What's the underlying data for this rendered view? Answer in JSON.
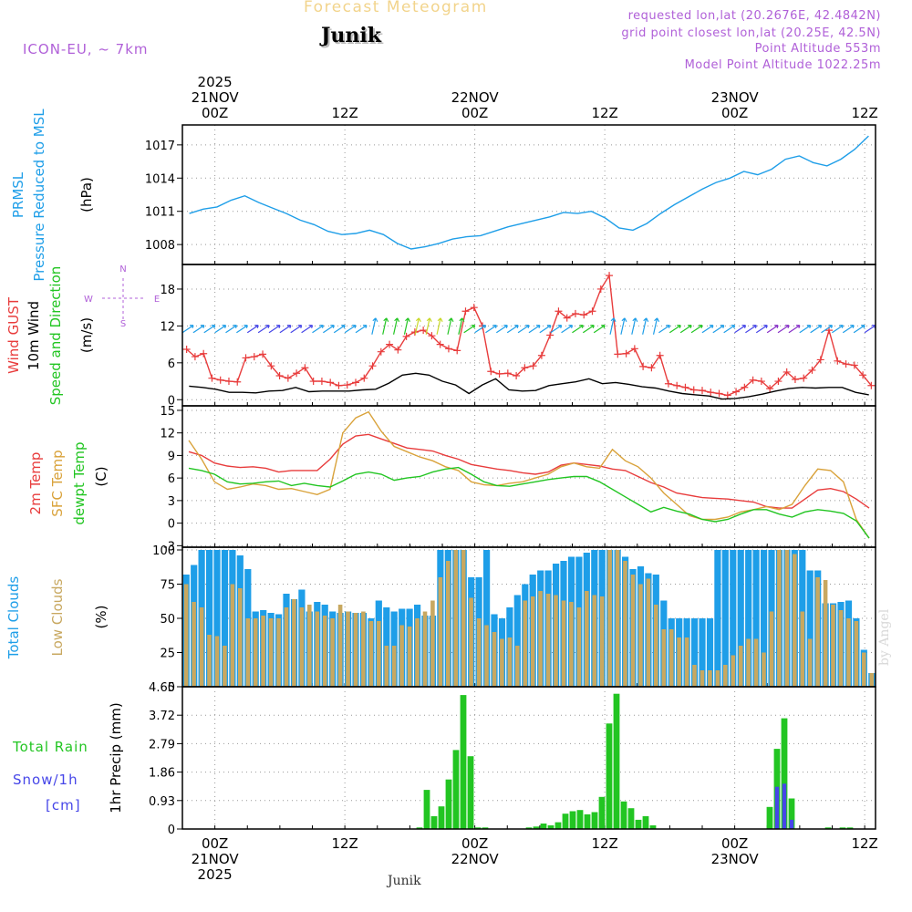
{
  "header": {
    "title": "Forecast Meteogram",
    "location": "Junik",
    "model": "ICON-EU, ~ 7km",
    "requested": "requested lon,lat (20.2676E, 42.4842N)",
    "gridpoint": "grid point closest lon,lat (20.25E, 42.5N)",
    "point_alt": "Point Altitude 553m",
    "model_alt": "Model Point Altitude 1022.25m",
    "footer_location": "Junik",
    "credit": "by Angel"
  },
  "colors": {
    "pressure": "#1e9ee8",
    "gust": "#e83c3c",
    "wind": "#000000",
    "temp2m": "#e83c3c",
    "sfc": "#d9a23a",
    "dewpt": "#22c522",
    "total_clouds": "#1e9ee8",
    "low_clouds": "#c8a860",
    "rain": "#22c522",
    "snow": "#4646e8",
    "magenta": "#b060d8"
  },
  "time_axis": {
    "start": "2025-11-20T21Z",
    "hours": 64,
    "top_labels": [
      {
        "h": 3,
        "lines": [
          "2025",
          "21NOV",
          "00Z"
        ]
      },
      {
        "h": 15,
        "lines": [
          "12Z"
        ]
      },
      {
        "h": 27,
        "lines": [
          "22NOV",
          "00Z"
        ]
      },
      {
        "h": 39,
        "lines": [
          "12Z"
        ]
      },
      {
        "h": 51,
        "lines": [
          "23NOV",
          "00Z"
        ]
      },
      {
        "h": 63,
        "lines": [
          "12Z"
        ]
      }
    ],
    "bottom_labels": [
      {
        "h": 3,
        "lines": [
          "00Z",
          "21NOV",
          "2025"
        ]
      },
      {
        "h": 15,
        "lines": [
          "12Z"
        ]
      },
      {
        "h": 27,
        "lines": [
          "00Z",
          "22NOV"
        ]
      },
      {
        "h": 39,
        "lines": [
          "12Z"
        ]
      },
      {
        "h": 51,
        "lines": [
          "00Z",
          "23NOV"
        ]
      },
      {
        "h": 63,
        "lines": [
          "12Z"
        ]
      }
    ]
  },
  "chart_data": [
    {
      "type": "line",
      "title": "PRMSL Pressure Reduced to MSL",
      "label_lines": [
        [
          "PRMSL"
        ],
        [
          "Pressure Reduced to MSL"
        ]
      ],
      "ylabel": "(hPa)",
      "ylim": [
        1006.2,
        1018.8
      ],
      "yticks": [
        1008,
        1011,
        1014,
        1017
      ],
      "series": [
        {
          "name": "PRMSL",
          "color": "#1e9ee8",
          "values": [
            1010.8,
            1011.2,
            1011.4,
            1012.0,
            1012.4,
            1011.8,
            1011.3,
            1010.8,
            1010.2,
            1009.8,
            1009.2,
            1008.9,
            1009.0,
            1009.3,
            1008.9,
            1008.1,
            1007.6,
            1007.8,
            1008.1,
            1008.5,
            1008.7,
            1008.8,
            1009.2,
            1009.6,
            1009.9,
            1010.2,
            1010.5,
            1010.9,
            1010.8,
            1011.0,
            1010.4,
            1009.5,
            1009.3,
            1009.9,
            1010.8,
            1011.6,
            1012.3,
            1013.0,
            1013.6,
            1014.0,
            1014.6,
            1014.3,
            1014.8,
            1015.7,
            1016.0,
            1015.4,
            1015.1,
            1015.7,
            1016.6,
            1017.8
          ]
        }
      ]
    },
    {
      "type": "line",
      "title": "Wind GUST 10m Wind Speed and Direction",
      "label_lines": [
        [
          "Wind GUST"
        ],
        [
          "10m Wind"
        ],
        [
          "Speed and Direction"
        ]
      ],
      "ylabel": "(m/s)",
      "ylim": [
        -1,
        22
      ],
      "yticks": [
        0,
        6,
        12,
        18
      ],
      "compass": {
        "w": "W",
        "e": "E",
        "n": "N",
        "s": "S"
      },
      "series": [
        {
          "name": "Wind GUST",
          "color": "#e83c3c",
          "markers": "+",
          "values": [
            8.2,
            7.0,
            7.5,
            3.5,
            3.2,
            3.0,
            2.9,
            6.8,
            7.0,
            7.4,
            5.5,
            3.9,
            3.5,
            4.3,
            5.2,
            3.0,
            3.0,
            2.8,
            2.3,
            2.4,
            2.8,
            3.5,
            5.5,
            7.8,
            9.0,
            8.1,
            10.3,
            11.0,
            11.3,
            10.4,
            9.0,
            8.3,
            8.0,
            14.4,
            15.0,
            12.0,
            4.6,
            4.2,
            4.3,
            3.9,
            5.2,
            5.5,
            7.2,
            10.5,
            14.4,
            13.3,
            14.0,
            13.8,
            14.4,
            18.0,
            20.2,
            7.4,
            7.5,
            8.3,
            5.4,
            5.2,
            7.2,
            2.6,
            2.3,
            2.0,
            1.6,
            1.5,
            1.2,
            1.0,
            0.7,
            1.3,
            2.0,
            3.2,
            3.0,
            1.8,
            3.0,
            4.5,
            3.3,
            3.5,
            4.8,
            6.5,
            11.3,
            6.3,
            5.8,
            5.6,
            4.0,
            2.3
          ]
        },
        {
          "name": "10m Wind",
          "color": "#000000",
          "values": [
            2.2,
            2.0,
            1.7,
            1.2,
            1.2,
            1.1,
            1.4,
            1.5,
            2.0,
            1.3,
            1.4,
            1.4,
            1.4,
            1.6,
            1.7,
            2.7,
            4.0,
            4.3,
            4.0,
            3.0,
            2.4,
            1.0,
            2.4,
            3.4,
            1.6,
            1.4,
            1.5,
            2.3,
            2.6,
            2.9,
            3.4,
            2.6,
            2.8,
            2.5,
            2.1,
            1.9,
            1.4,
            1.0,
            0.8,
            0.6,
            0.1,
            0.2,
            0.5,
            0.9,
            1.4,
            1.8,
            2.0,
            1.9,
            2.0,
            2.0,
            1.2,
            0.8
          ]
        }
      ]
    },
    {
      "type": "line",
      "title": "2m Temp SFC Temp dewpt Temp",
      "label_lines": [
        [
          "2m Temp"
        ],
        [
          "SFC Temp"
        ],
        [
          "dewpt Temp"
        ]
      ],
      "ylabel": "(C)",
      "ylim": [
        -3.2,
        15.6
      ],
      "yticks": [
        -3,
        0,
        3,
        6,
        9,
        12,
        15
      ],
      "series": [
        {
          "name": "2m Temp",
          "color": "#e83c3c",
          "values": [
            9.5,
            9.0,
            8.0,
            7.6,
            7.4,
            7.5,
            7.3,
            6.8,
            7.0,
            7.0,
            7.0,
            8.5,
            10.5,
            11.6,
            11.8,
            11.2,
            10.6,
            10.0,
            9.8,
            9.6,
            9.0,
            8.5,
            7.8,
            7.5,
            7.2,
            7.0,
            6.7,
            6.5,
            6.8,
            7.7,
            8.0,
            7.8,
            7.6,
            7.2,
            7.0,
            6.2,
            5.4,
            4.8,
            4.0,
            3.7,
            3.4,
            3.3,
            3.2,
            3.0,
            2.8,
            2.2,
            2.0,
            2.0,
            3.2,
            4.4,
            4.6,
            4.2,
            3.2,
            2.0
          ]
        },
        {
          "name": "SFC Temp",
          "color": "#d9a23a",
          "values": [
            11.0,
            8.5,
            5.5,
            4.5,
            4.8,
            5.2,
            5.0,
            4.5,
            4.6,
            4.2,
            3.8,
            4.5,
            12.0,
            14.0,
            14.8,
            12.2,
            10.2,
            9.5,
            8.8,
            8.3,
            7.5,
            7.0,
            5.5,
            5.1,
            5.0,
            5.3,
            5.5,
            6.0,
            6.5,
            7.5,
            8.0,
            7.5,
            7.3,
            9.8,
            8.3,
            7.5,
            6.0,
            4.0,
            2.5,
            1.0,
            0.5,
            0.5,
            0.8,
            1.5,
            1.8,
            2.2,
            1.8,
            2.5,
            5.0,
            7.2,
            7.0,
            5.5,
            0.5,
            -2.0
          ]
        },
        {
          "name": "dewpt Temp",
          "color": "#22c522",
          "values": [
            7.3,
            7.0,
            6.5,
            5.5,
            5.2,
            5.3,
            5.5,
            5.6,
            5.0,
            5.3,
            5.0,
            4.8,
            5.6,
            6.5,
            6.8,
            6.5,
            5.7,
            6.0,
            6.2,
            6.8,
            7.2,
            7.4,
            6.5,
            5.5,
            5.0,
            4.9,
            5.2,
            5.5,
            5.8,
            6.0,
            6.2,
            6.2,
            5.5,
            4.5,
            3.5,
            2.5,
            1.5,
            2.1,
            1.6,
            1.2,
            0.5,
            0.2,
            0.5,
            1.2,
            1.8,
            1.8,
            1.2,
            0.8,
            1.5,
            1.8,
            1.6,
            1.3,
            0.3,
            -2.0
          ]
        }
      ]
    },
    {
      "type": "bar",
      "title": "Total Clouds Low Clouds",
      "label_lines": [
        [
          "Total Clouds"
        ],
        [
          "Low Clouds"
        ]
      ],
      "ylabel": "(%)",
      "ylim": [
        0,
        102
      ],
      "yticks": [
        0,
        25,
        50,
        75,
        100
      ],
      "series": [
        {
          "name": "Total Clouds",
          "color": "#1e9ee8",
          "values": [
            82,
            89,
            100,
            100,
            100,
            100,
            100,
            96,
            86,
            55,
            56,
            54,
            53,
            68,
            64,
            71,
            55,
            62,
            60,
            55,
            54,
            55,
            54,
            54,
            50,
            63,
            58,
            55,
            57,
            57,
            60,
            52,
            52,
            100,
            100,
            100,
            100,
            80,
            80,
            100,
            53,
            50,
            58,
            67,
            75,
            82,
            85,
            85,
            90,
            92,
            95,
            95,
            98,
            100,
            100,
            100,
            100,
            95,
            86,
            88,
            83,
            82,
            63,
            50,
            50,
            50,
            50,
            50,
            50,
            100,
            100,
            100,
            100,
            100,
            100,
            100,
            100,
            100,
            100,
            100,
            100,
            85,
            85,
            61,
            61,
            62,
            63,
            50,
            27,
            10
          ]
        },
        {
          "name": "Low Clouds",
          "color": "#c8a860",
          "values": [
            75,
            62,
            58,
            38,
            37,
            30,
            75,
            72,
            50,
            50,
            52,
            50,
            50,
            58,
            64,
            58,
            60,
            55,
            52,
            50,
            60,
            55,
            54,
            55,
            48,
            48,
            30,
            30,
            45,
            44,
            50,
            55,
            63,
            80,
            92,
            100,
            100,
            65,
            50,
            45,
            40,
            35,
            36,
            30,
            63,
            66,
            70,
            68,
            67,
            63,
            62,
            58,
            70,
            67,
            66,
            100,
            100,
            92,
            82,
            75,
            79,
            60,
            42,
            42,
            36,
            36,
            16,
            12,
            12,
            12,
            16,
            23,
            30,
            35,
            35,
            25,
            55,
            100,
            100,
            97,
            55,
            35,
            80,
            78,
            60,
            56,
            50,
            48,
            25,
            10
          ]
        }
      ]
    },
    {
      "type": "bar",
      "title": "1hr Precip (mm)",
      "label_lines": [
        [
          "Total",
          "Rain"
        ],
        [
          "Snow/1h"
        ],
        [
          "[cm]"
        ]
      ],
      "ylabel": "1hr Precip (mm)",
      "ylim": [
        0,
        4.65
      ],
      "yticks": [
        0,
        0.93,
        1.86,
        2.79,
        3.72,
        4.65
      ],
      "series": [
        {
          "name": "Total Rain",
          "color": "#22c522",
          "values": [
            0,
            0,
            0,
            0,
            0,
            0,
            0,
            0,
            0,
            0,
            0,
            0,
            0,
            0,
            0,
            0,
            0,
            0,
            0,
            0,
            0,
            0,
            0,
            0,
            0,
            0,
            0,
            0,
            0,
            0,
            0,
            0,
            0.05,
            1.28,
            0.42,
            0.74,
            1.62,
            2.58,
            4.38,
            2.38,
            0.05,
            0.05,
            0,
            0,
            0,
            0,
            0,
            0.05,
            0.08,
            0.18,
            0.12,
            0.22,
            0.5,
            0.58,
            0.62,
            0.48,
            0.55,
            1.05,
            3.45,
            4.42,
            0.9,
            0.68,
            0.3,
            0.42,
            0.12,
            0,
            0,
            0,
            0,
            0,
            0,
            0,
            0,
            0,
            0,
            0,
            0,
            0,
            0,
            0,
            0.72,
            2.62,
            3.62,
            1.0,
            0,
            0,
            0,
            0,
            0.05,
            0,
            0.05,
            0.05,
            0,
            0,
            0
          ]
        },
        {
          "name": "Snow/1h",
          "color": "#4646e8",
          "values": [
            0,
            0,
            0,
            0,
            0,
            0,
            0,
            0,
            0,
            0,
            0,
            0,
            0,
            0,
            0,
            0,
            0,
            0,
            0,
            0,
            0,
            0,
            0,
            0,
            0,
            0,
            0,
            0,
            0,
            0,
            0,
            0,
            0,
            0,
            0,
            0,
            0,
            0,
            0,
            0,
            0,
            0,
            0,
            0,
            0,
            0,
            0,
            0,
            0,
            0,
            0,
            0,
            0,
            0,
            0,
            0,
            0,
            0,
            0,
            0,
            0,
            0,
            0,
            0,
            0,
            0,
            0,
            0,
            0,
            0,
            0,
            0,
            0,
            0,
            0,
            0,
            0,
            0,
            0,
            0,
            0,
            1.38,
            1.48,
            0.3,
            0,
            0,
            0,
            0,
            0,
            0,
            0,
            0,
            0,
            0,
            0
          ]
        }
      ]
    }
  ]
}
